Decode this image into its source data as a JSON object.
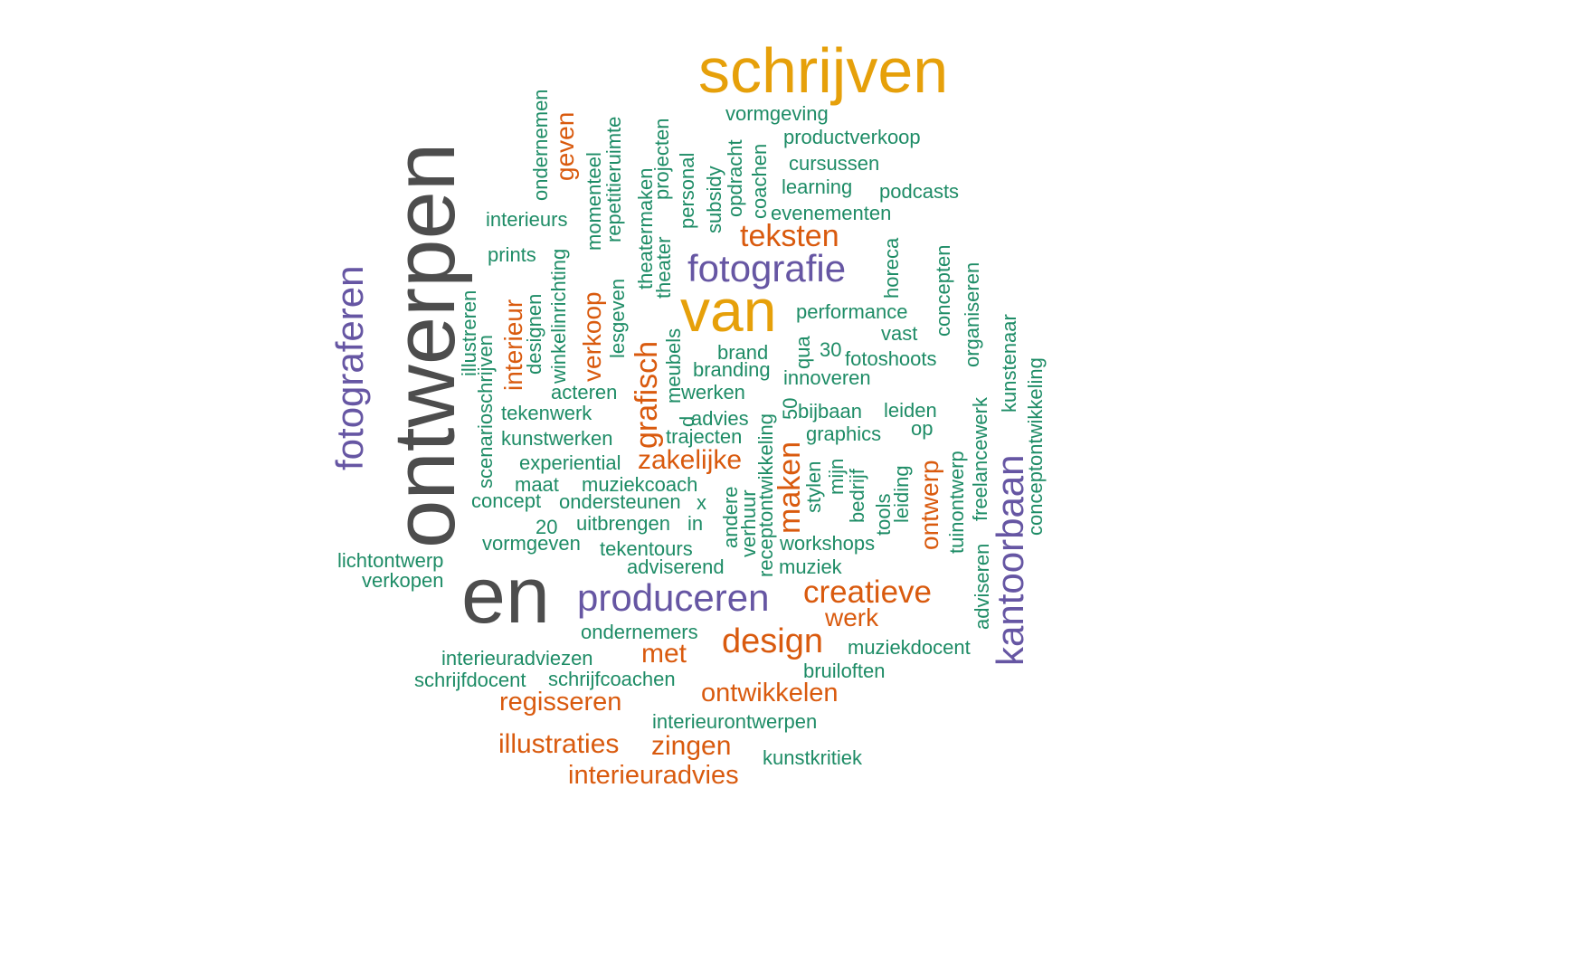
{
  "palette": {
    "dark": "#4d4d4d",
    "gold": "#e6a00a",
    "purple": "#6656a3",
    "orange": "#d95a0e",
    "green": "#1e8c66"
  },
  "words": [
    {
      "text": "ontwerpen",
      "color": "dark"
    },
    {
      "text": "en",
      "color": "dark"
    },
    {
      "text": "schrijven",
      "color": "gold"
    },
    {
      "text": "van",
      "color": "gold"
    },
    {
      "text": "fotograferen",
      "color": "purple"
    },
    {
      "text": "fotografie",
      "color": "purple"
    },
    {
      "text": "produceren",
      "color": "purple"
    },
    {
      "text": "kantoorbaan",
      "color": "purple"
    },
    {
      "text": "teksten",
      "color": "orange"
    },
    {
      "text": "geven",
      "color": "orange"
    },
    {
      "text": "interieur",
      "color": "orange"
    },
    {
      "text": "verkoop",
      "color": "orange"
    },
    {
      "text": "grafisch",
      "color": "orange"
    },
    {
      "text": "zakelijke",
      "color": "orange"
    },
    {
      "text": "maken",
      "color": "orange"
    },
    {
      "text": "ontwerp",
      "color": "orange"
    },
    {
      "text": "creatieve",
      "color": "orange"
    },
    {
      "text": "werk",
      "color": "orange"
    },
    {
      "text": "design",
      "color": "orange"
    },
    {
      "text": "met",
      "color": "orange"
    },
    {
      "text": "regisseren",
      "color": "orange"
    },
    {
      "text": "ontwikkelen",
      "color": "orange"
    },
    {
      "text": "illustraties",
      "color": "orange"
    },
    {
      "text": "zingen",
      "color": "orange"
    },
    {
      "text": "interieuradvies",
      "color": "orange"
    },
    {
      "text": "vormgeving",
      "color": "green"
    },
    {
      "text": "productverkoop",
      "color": "green"
    },
    {
      "text": "cursussen",
      "color": "green"
    },
    {
      "text": "learning",
      "color": "green"
    },
    {
      "text": "podcasts",
      "color": "green"
    },
    {
      "text": "evenementen",
      "color": "green"
    },
    {
      "text": "interieurs",
      "color": "green"
    },
    {
      "text": "prints",
      "color": "green"
    },
    {
      "text": "performance",
      "color": "green"
    },
    {
      "text": "vast",
      "color": "green"
    },
    {
      "text": "brand",
      "color": "green"
    },
    {
      "text": "30",
      "color": "green"
    },
    {
      "text": "fotoshoots",
      "color": "green"
    },
    {
      "text": "branding",
      "color": "green"
    },
    {
      "text": "innoveren",
      "color": "green"
    },
    {
      "text": "acteren",
      "color": "green"
    },
    {
      "text": "werken",
      "color": "green"
    },
    {
      "text": "tekenwerk",
      "color": "green"
    },
    {
      "text": "advies",
      "color": "green"
    },
    {
      "text": "bijbaan",
      "color": "green"
    },
    {
      "text": "leiden",
      "color": "green"
    },
    {
      "text": "op",
      "color": "green"
    },
    {
      "text": "kunstwerken",
      "color": "green"
    },
    {
      "text": "trajecten",
      "color": "green"
    },
    {
      "text": "graphics",
      "color": "green"
    },
    {
      "text": "experiential",
      "color": "green"
    },
    {
      "text": "maat",
      "color": "green"
    },
    {
      "text": "muziekcoach",
      "color": "green"
    },
    {
      "text": "concept",
      "color": "green"
    },
    {
      "text": "ondersteunen",
      "color": "green"
    },
    {
      "text": "x",
      "color": "green"
    },
    {
      "text": "20",
      "color": "green"
    },
    {
      "text": "uitbrengen",
      "color": "green"
    },
    {
      "text": "in",
      "color": "green"
    },
    {
      "text": "vormgeven",
      "color": "green"
    },
    {
      "text": "tekentours",
      "color": "green"
    },
    {
      "text": "workshops",
      "color": "green"
    },
    {
      "text": "lichtontwerp",
      "color": "green"
    },
    {
      "text": "adviserend",
      "color": "green"
    },
    {
      "text": "muziek",
      "color": "green"
    },
    {
      "text": "verkopen",
      "color": "green"
    },
    {
      "text": "ondernemers",
      "color": "green"
    },
    {
      "text": "muziekdocent",
      "color": "green"
    },
    {
      "text": "interieuradviezen",
      "color": "green"
    },
    {
      "text": "bruiloften",
      "color": "green"
    },
    {
      "text": "schrijfdocent",
      "color": "green"
    },
    {
      "text": "schrijfcoachen",
      "color": "green"
    },
    {
      "text": "interieurontwerpen",
      "color": "green"
    },
    {
      "text": "kunstkritiek",
      "color": "green"
    },
    {
      "text": "ondernemen",
      "color": "green"
    },
    {
      "text": "momenteel",
      "color": "green"
    },
    {
      "text": "repetitieruimte",
      "color": "green"
    },
    {
      "text": "theatermaken",
      "color": "green"
    },
    {
      "text": "projecten",
      "color": "green"
    },
    {
      "text": "theater",
      "color": "green"
    },
    {
      "text": "personal",
      "color": "green"
    },
    {
      "text": "subsidy",
      "color": "green"
    },
    {
      "text": "opdracht",
      "color": "green"
    },
    {
      "text": "coachen",
      "color": "green"
    },
    {
      "text": "horeca",
      "color": "green"
    },
    {
      "text": "concepten",
      "color": "green"
    },
    {
      "text": "organiseren",
      "color": "green"
    },
    {
      "text": "kunstenaar",
      "color": "green"
    },
    {
      "text": "conceptontwikkeling",
      "color": "green"
    },
    {
      "text": "illustreren",
      "color": "green"
    },
    {
      "text": "scenarioschrijven",
      "color": "green"
    },
    {
      "text": "designen",
      "color": "green"
    },
    {
      "text": "winkelinrichting",
      "color": "green"
    },
    {
      "text": "lesgeven",
      "color": "green"
    },
    {
      "text": "meubels",
      "color": "green"
    },
    {
      "text": "qua",
      "color": "green"
    },
    {
      "text": "50",
      "color": "green"
    },
    {
      "text": "d",
      "color": "green"
    },
    {
      "text": "receptontwikkeling",
      "color": "green"
    },
    {
      "text": "andere",
      "color": "green"
    },
    {
      "text": "verhuur",
      "color": "green"
    },
    {
      "text": "stylen",
      "color": "green"
    },
    {
      "text": "mijn",
      "color": "green"
    },
    {
      "text": "bedrijf",
      "color": "green"
    },
    {
      "text": "tools",
      "color": "green"
    },
    {
      "text": "leiding",
      "color": "green"
    },
    {
      "text": "tuinontwerp",
      "color": "green"
    },
    {
      "text": "adviseren",
      "color": "green"
    },
    {
      "text": "freelancewerk",
      "color": "green"
    }
  ]
}
